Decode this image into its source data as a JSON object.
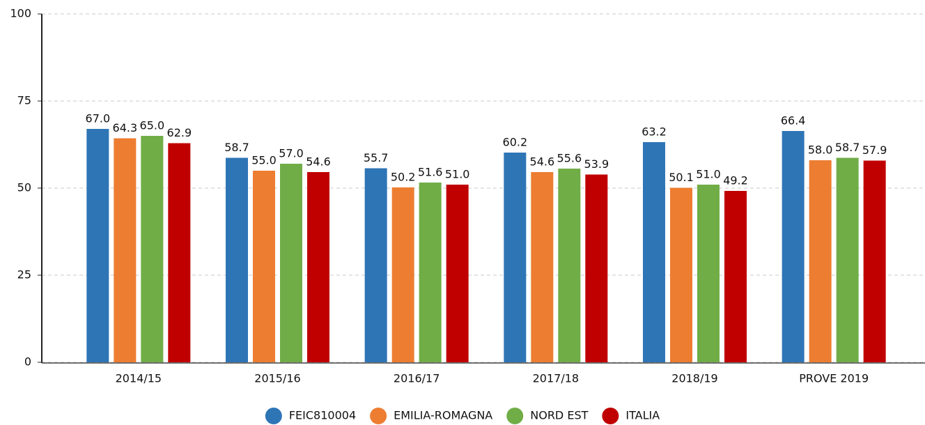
{
  "chart_data": {
    "type": "bar",
    "categories": [
      "2014/15",
      "2015/16",
      "2016/17",
      "2017/18",
      "2018/19",
      "PROVE 2019"
    ],
    "series": [
      {
        "name": "FEIC810004",
        "color": "#2e75b6",
        "values": [
          67.0,
          58.7,
          55.7,
          60.2,
          63.2,
          66.4
        ],
        "value_labels": [
          "67.0",
          "58.7",
          "55.7",
          "60.2",
          "63.2",
          "66.4"
        ]
      },
      {
        "name": "EMILIA-ROMAGNA",
        "color": "#ed7d31",
        "values": [
          64.3,
          55.0,
          50.2,
          54.6,
          50.1,
          58.0
        ],
        "value_labels": [
          "64.3",
          "55.0",
          "50.2",
          "54.6",
          "50.1",
          "58.0"
        ]
      },
      {
        "name": "NORD EST",
        "color": "#70ad47",
        "values": [
          65.0,
          57.0,
          51.6,
          55.6,
          51.0,
          58.7
        ],
        "value_labels": [
          "65.0",
          "57.0",
          "51.6",
          "55.6",
          "51.0",
          "58.7"
        ]
      },
      {
        "name": "ITALIA",
        "color": "#c00000",
        "values": [
          62.9,
          54.6,
          51.0,
          53.9,
          49.2,
          57.9
        ],
        "value_labels": [
          "62.9",
          "54.6",
          "51.0",
          "53.9",
          "49.2",
          "57.9"
        ]
      }
    ],
    "ylim": [
      0,
      100
    ],
    "yticks": [
      0,
      25,
      50,
      75,
      100
    ],
    "grid": true,
    "legend": "bottom"
  }
}
